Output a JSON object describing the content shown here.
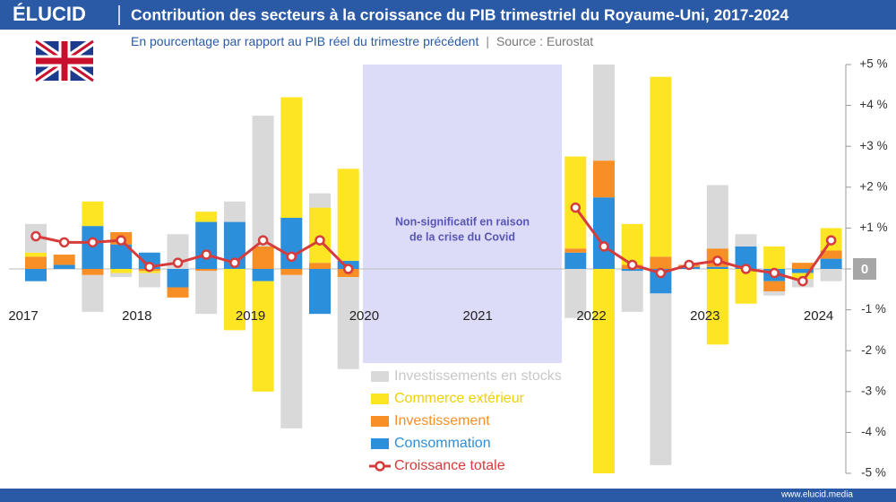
{
  "brand": "ÉLUCID",
  "footer": "www.elucid.media",
  "chart_data": {
    "type": "stacked-bar-line",
    "title": "Contribution des secteurs à la croissance du PIB trimestriel du Royaume-Uni, 2017-2024",
    "subtitle": "En pourcentage par rapport au PIB réel du trimestre précédent",
    "source": "Source : Eurostat",
    "annotation": [
      "Non-significatif en raison",
      "de la crise du Covid"
    ],
    "categories": [
      "2017",
      null,
      null,
      null,
      "2018",
      null,
      null,
      null,
      "2019",
      null,
      null,
      null,
      "2020",
      null,
      null,
      null,
      "2021",
      null,
      null,
      null,
      "2022",
      null,
      null,
      null,
      "2023",
      null,
      null,
      null,
      "2024"
    ],
    "series": [
      {
        "name": "Consommation",
        "color": "#2b8fdb",
        "values": [
          -0.3,
          0.1,
          1.05,
          0.6,
          0.4,
          -0.45,
          1.15,
          1.15,
          -0.3,
          1.25,
          -1.1,
          0.2,
          null,
          null,
          null,
          null,
          null,
          null,
          null,
          0.4,
          1.75,
          -0.05,
          -0.6,
          0.05,
          0.05,
          0.55,
          -0.3,
          -0.1,
          0.25
        ]
      },
      {
        "name": "Investissement",
        "color": "#f78f26",
        "values": [
          0.3,
          0.25,
          -0.15,
          0.3,
          -0.05,
          -0.25,
          -0.05,
          0,
          0.55,
          -0.15,
          0.15,
          -0.2,
          null,
          null,
          null,
          null,
          null,
          null,
          null,
          0.1,
          0.9,
          0.1,
          0.3,
          0.05,
          0.45,
          0,
          -0.25,
          0.15,
          0.2
        ]
      },
      {
        "name": "Commerce extérieur",
        "color": "#fde524",
        "values": [
          0.1,
          0,
          0.6,
          -0.1,
          -0.05,
          0,
          0.25,
          -1.5,
          -2.7,
          2.95,
          1.35,
          2.25,
          null,
          null,
          null,
          null,
          null,
          null,
          null,
          2.25,
          -5.0,
          1.0,
          4.4,
          0,
          -1.85,
          -0.85,
          0.55,
          -0.15,
          0.55
        ]
      },
      {
        "name": "Investissements en stocks",
        "color": "#d9d9d9",
        "values": [
          0.7,
          0,
          -0.9,
          -0.1,
          -0.35,
          0.85,
          -1.05,
          0.5,
          3.2,
          -3.75,
          0.35,
          -2.25,
          null,
          null,
          null,
          null,
          null,
          null,
          null,
          -1.2,
          2.35,
          -1.0,
          -4.2,
          0,
          1.55,
          0.3,
          -0.1,
          -0.2,
          -0.3
        ]
      }
    ],
    "line": {
      "name": "Croissance totale",
      "color": "#d63c3c",
      "values": [
        0.8,
        0.65,
        0.65,
        0.7,
        0.05,
        0.15,
        0.35,
        0.15,
        0.7,
        0.3,
        0.7,
        0.0,
        null,
        null,
        null,
        null,
        null,
        null,
        null,
        1.5,
        0.55,
        0.1,
        -0.1,
        0.1,
        0.2,
        0.0,
        -0.1,
        -0.3,
        0.7
      ]
    },
    "ylim": [
      -5,
      5
    ],
    "yticks": [
      {
        "value": 5,
        "label": "+5 %"
      },
      {
        "value": 4,
        "label": "+4 %"
      },
      {
        "value": 3,
        "label": "+3 %"
      },
      {
        "value": 2,
        "label": "+2 %"
      },
      {
        "value": 1,
        "label": "+1 %"
      },
      0,
      {
        "value": -1,
        "label": "-1 %"
      },
      {
        "value": -2,
        "label": "-2 %"
      },
      {
        "value": -3,
        "label": "-3 %"
      },
      {
        "value": -4,
        "label": "-4 %"
      },
      {
        "value": -5,
        "label": "-5 %"
      }
    ],
    "grid": false
  }
}
